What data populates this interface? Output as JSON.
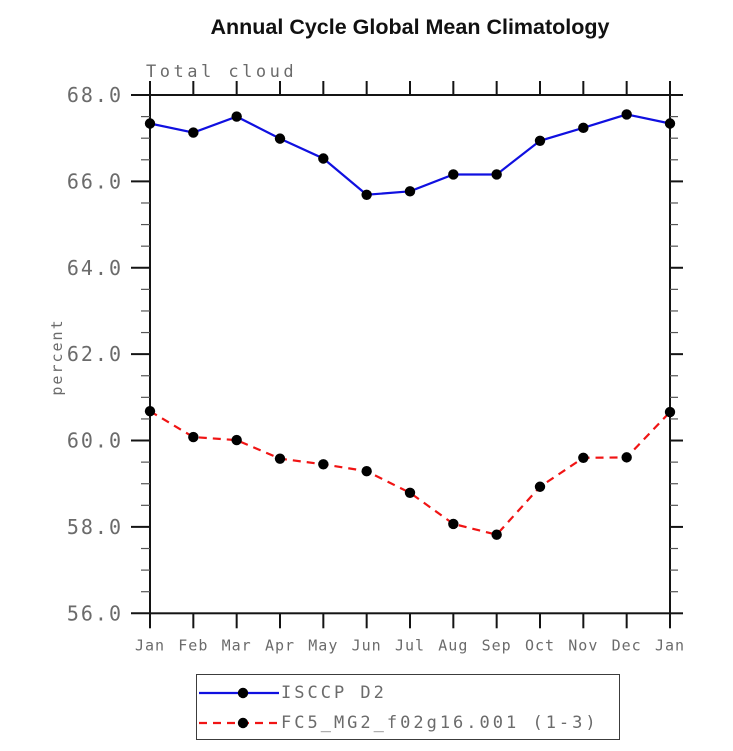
{
  "title": "Annual Cycle Global Mean Climatology",
  "subtitle": "Total cloud",
  "colors": {
    "axis_line": "#141414",
    "axis_minor_tick": "#555555",
    "axis_text": "#6b6b6b",
    "title_text": "#111111"
  },
  "chart_data": {
    "type": "line",
    "title": "Annual Cycle Global Mean Climatology",
    "subtitle": "Total cloud",
    "xlabel": "",
    "ylabel": "percent",
    "categories": [
      "Jan",
      "Feb",
      "Mar",
      "Apr",
      "May",
      "Jun",
      "Jul",
      "Aug",
      "Sep",
      "Oct",
      "Nov",
      "Dec",
      "Jan"
    ],
    "ylim": [
      56.0,
      68.0
    ],
    "ytick_step": 2.0,
    "ytick_minor_step": 0.5,
    "ytick_labels": [
      "56.0",
      "58.0",
      "60.0",
      "62.0",
      "64.0",
      "66.0",
      "68.0"
    ],
    "grid": false,
    "legend_position": "bottom",
    "series": [
      {
        "name": "ISCCP D2",
        "color": "#1010e0",
        "dash": "none",
        "marker": "circle",
        "marker_color": "#000000",
        "values": [
          67.34,
          67.13,
          67.5,
          66.99,
          66.53,
          65.69,
          65.77,
          66.16,
          66.16,
          66.94,
          67.24,
          67.55,
          67.34
        ]
      },
      {
        "name": "FC5_MG2_f02g16.001 (1-3)",
        "color": "#f01414",
        "dash": "8 6",
        "marker": "circle",
        "marker_color": "#000000",
        "values": [
          60.68,
          60.08,
          60.01,
          59.58,
          59.45,
          59.29,
          58.79,
          58.07,
          57.82,
          58.93,
          59.6,
          59.61,
          60.66
        ]
      }
    ]
  }
}
